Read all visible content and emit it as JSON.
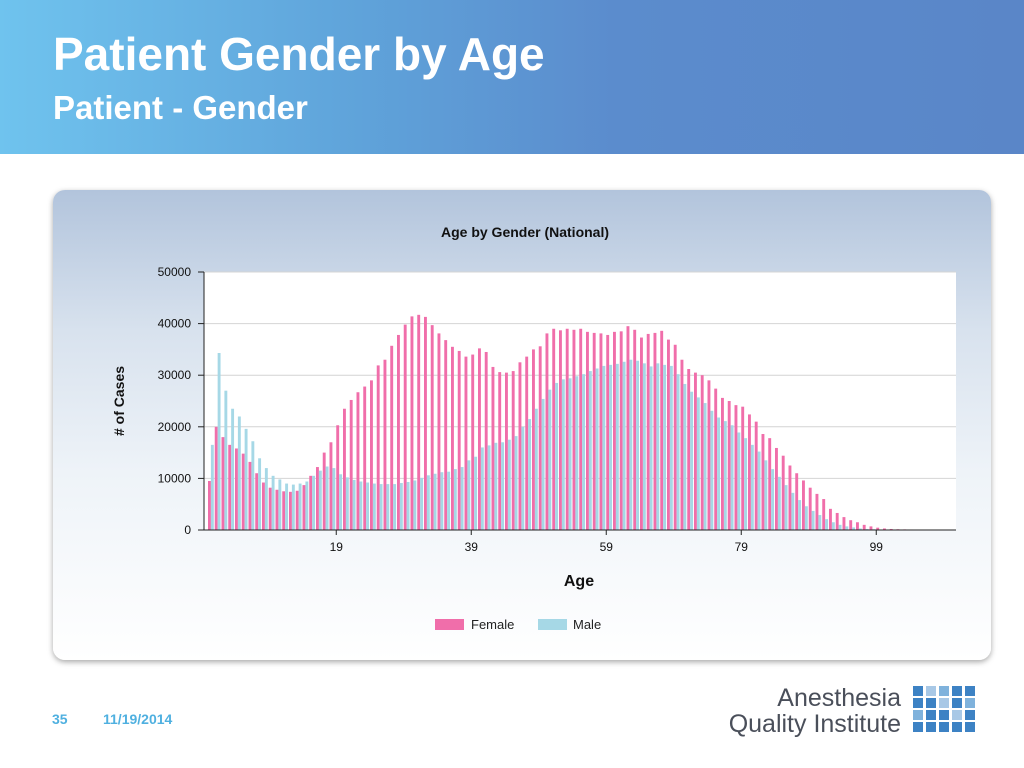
{
  "slide": {
    "title": "Patient Gender by Age",
    "subtitle": "Patient - Gender",
    "page_number": "35",
    "date": "11/19/2014"
  },
  "logo": {
    "line1": "Anesthesia",
    "line2": "Quality Institute"
  },
  "colors": {
    "header_start": "#6fc3ee",
    "header_end": "#5a86c8",
    "female": "#f06eaa",
    "male": "#a6d8e6",
    "footer_text": "#4fb0e0",
    "logo_blue": "#3d82c4"
  },
  "chart_data": {
    "type": "bar",
    "title": "Age by Gender (National)",
    "xlabel": "Age",
    "ylabel": "# of Cases",
    "ylim": [
      0,
      50000
    ],
    "y_ticks": [
      0,
      10000,
      20000,
      30000,
      40000,
      50000
    ],
    "x_ticks": [
      19,
      39,
      59,
      79,
      99
    ],
    "x": [
      0,
      1,
      2,
      3,
      4,
      5,
      6,
      7,
      8,
      9,
      10,
      11,
      12,
      13,
      14,
      15,
      16,
      17,
      18,
      19,
      20,
      21,
      22,
      23,
      24,
      25,
      26,
      27,
      28,
      29,
      30,
      31,
      32,
      33,
      34,
      35,
      36,
      37,
      38,
      39,
      40,
      41,
      42,
      43,
      44,
      45,
      46,
      47,
      48,
      49,
      50,
      51,
      52,
      53,
      54,
      55,
      56,
      57,
      58,
      59,
      60,
      61,
      62,
      63,
      64,
      65,
      66,
      67,
      68,
      69,
      70,
      71,
      72,
      73,
      74,
      75,
      76,
      77,
      78,
      79,
      80,
      81,
      82,
      83,
      84,
      85,
      86,
      87,
      88,
      89,
      90,
      91,
      92,
      93,
      94,
      95,
      96,
      97,
      98,
      99,
      100,
      101,
      102,
      103,
      104,
      105,
      106,
      107,
      108,
      109
    ],
    "grid": true,
    "legend_position": "bottom",
    "series": [
      {
        "name": "Female",
        "color": "#f06eaa",
        "values": [
          9500,
          20000,
          18000,
          16500,
          15800,
          14800,
          13200,
          11000,
          9200,
          8200,
          7800,
          7500,
          7400,
          7600,
          8700,
          10500,
          12200,
          15000,
          17000,
          20300,
          23500,
          25200,
          26700,
          27800,
          29000,
          31900,
          33000,
          35700,
          37800,
          39800,
          41400,
          41700,
          41300,
          39700,
          38100,
          36800,
          35500,
          34700,
          33600,
          34000,
          35200,
          34500,
          31600,
          30600,
          30500,
          30800,
          32500,
          33600,
          35000,
          35600,
          38100,
          39000,
          38700,
          39000,
          38800,
          39000,
          38400,
          38200,
          38100,
          37800,
          38400,
          38500,
          39500,
          38800,
          37300,
          38000,
          38200,
          38600,
          36900,
          35900,
          33000,
          31200,
          30500,
          30000,
          29000,
          27400,
          25600,
          25000,
          24200,
          23900,
          22400,
          21000,
          18600,
          17800,
          15900,
          14400,
          12500,
          11000,
          9600,
          8200,
          7000,
          6000,
          4100,
          3300,
          2500,
          1900,
          1500,
          1000,
          700,
          450,
          300,
          200,
          150,
          120,
          100,
          80,
          60,
          50,
          40,
          30
        ]
      },
      {
        "name": "Male",
        "color": "#a6d8e6",
        "values": [
          16500,
          34300,
          27000,
          23500,
          22000,
          19600,
          17200,
          13900,
          12000,
          10500,
          9800,
          9000,
          8800,
          9000,
          9400,
          10500,
          11500,
          12300,
          12000,
          10800,
          10200,
          9700,
          9400,
          9200,
          9000,
          8900,
          8900,
          8900,
          9100,
          9300,
          9600,
          10100,
          10600,
          10900,
          11200,
          11300,
          11800,
          12200,
          13500,
          14200,
          16000,
          16400,
          16900,
          17000,
          17500,
          18200,
          20000,
          21500,
          23500,
          25400,
          27200,
          28500,
          29200,
          29400,
          29800,
          30200,
          30800,
          31300,
          31800,
          32000,
          32200,
          32600,
          33000,
          32800,
          32300,
          31700,
          32300,
          32000,
          31800,
          30200,
          28300,
          26800,
          25700,
          24600,
          23100,
          21800,
          21100,
          20300,
          18900,
          17800,
          16500,
          15200,
          13500,
          11800,
          10300,
          8700,
          7200,
          5800,
          4600,
          3700,
          2900,
          2100,
          1500,
          1000,
          700,
          500,
          300,
          200,
          150,
          100,
          80,
          60,
          50,
          40,
          30,
          20,
          15,
          10,
          8,
          5
        ]
      }
    ]
  }
}
